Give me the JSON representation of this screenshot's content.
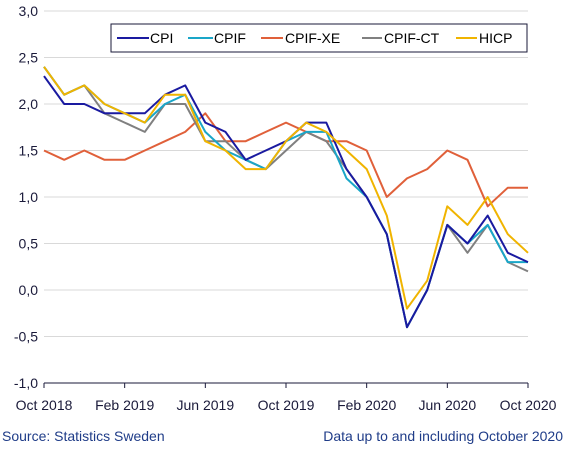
{
  "chart_data": {
    "type": "line",
    "title": "",
    "xlabel": "",
    "ylabel": "",
    "x": [
      "Oct 2018",
      "Nov 2018",
      "Dec 2018",
      "Jan 2019",
      "Feb 2019",
      "Mar 2019",
      "Apr 2019",
      "May 2019",
      "Jun 2019",
      "Jul 2019",
      "Aug 2019",
      "Sep 2019",
      "Oct 2019",
      "Nov 2019",
      "Dec 2019",
      "Jan 2020",
      "Feb 2020",
      "Mar 2020",
      "Apr 2020",
      "May 2020",
      "Jun 2020",
      "Jul 2020",
      "Aug 2020",
      "Sep 2020",
      "Oct 2020"
    ],
    "x_tick_labels": [
      "Oct 2018",
      "Feb 2019",
      "Jun 2019",
      "Oct 2019",
      "Feb 2020",
      "Jun 2020",
      "Oct 2020"
    ],
    "y_tick_labels": [
      "3,0",
      "2,5",
      "2,0",
      "1,5",
      "1,0",
      "0,5",
      "0,0",
      "-0,5",
      "-1,0"
    ],
    "ylim": [
      -1.0,
      3.0
    ],
    "grid": "horizontal",
    "legend_position": "top-right",
    "series": [
      {
        "name": "CPI",
        "color": "#1a1aa0",
        "values": [
          2.3,
          2.0,
          2.0,
          1.9,
          1.9,
          1.9,
          2.1,
          2.2,
          1.8,
          1.7,
          1.4,
          1.5,
          1.6,
          1.8,
          1.8,
          1.3,
          1.0,
          0.6,
          -0.4,
          0.0,
          0.7,
          0.5,
          0.8,
          0.4,
          0.3
        ]
      },
      {
        "name": "CPIF",
        "color": "#1aa6c8",
        "values": [
          2.4,
          2.1,
          2.2,
          2.0,
          1.9,
          1.8,
          2.0,
          2.1,
          1.7,
          1.5,
          1.4,
          1.3,
          1.6,
          1.7,
          1.7,
          1.2,
          1.0,
          0.6,
          -0.4,
          0.0,
          0.7,
          0.5,
          0.7,
          0.3,
          0.3
        ]
      },
      {
        "name": "CPIF-XE",
        "color": "#e0603a",
        "values": [
          1.5,
          1.4,
          1.5,
          1.4,
          1.4,
          1.5,
          1.6,
          1.7,
          1.9,
          1.6,
          1.6,
          1.7,
          1.8,
          1.7,
          1.6,
          1.6,
          1.5,
          1.0,
          1.2,
          1.3,
          1.5,
          1.4,
          0.9,
          1.1,
          1.1
        ]
      },
      {
        "name": "CPIF-CT",
        "color": "#808080",
        "values": [
          2.4,
          2.1,
          2.2,
          1.9,
          1.8,
          1.7,
          2.0,
          2.0,
          1.6,
          1.6,
          1.4,
          1.3,
          1.5,
          1.7,
          1.6,
          1.3,
          1.0,
          0.6,
          -0.4,
          0.0,
          0.7,
          0.4,
          0.7,
          0.3,
          0.2
        ]
      },
      {
        "name": "HICP",
        "color": "#f0b400",
        "values": [
          2.4,
          2.1,
          2.2,
          2.0,
          1.9,
          1.8,
          2.1,
          2.1,
          1.6,
          1.5,
          1.3,
          1.3,
          1.6,
          1.8,
          1.7,
          1.5,
          1.3,
          0.8,
          -0.2,
          0.1,
          0.9,
          0.7,
          1.0,
          0.6,
          0.4
        ]
      }
    ]
  },
  "footer": {
    "source": "Source: Statistics Sweden",
    "note": "Data up to and including October 2020"
  }
}
